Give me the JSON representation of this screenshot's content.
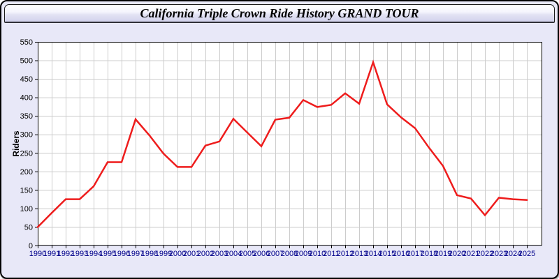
{
  "page": {
    "title": "California Triple Crown Ride History GRAND TOUR",
    "background_color": "#e8e8f8"
  },
  "chart_data": {
    "type": "line",
    "title": "California Triple Crown Ride History GRAND TOUR",
    "xlabel": "",
    "ylabel": "Riders",
    "x": [
      1990,
      1991,
      1992,
      1993,
      1994,
      1995,
      1996,
      1997,
      1998,
      1999,
      2000,
      2001,
      2002,
      2003,
      2004,
      2005,
      2006,
      2007,
      2008,
      2009,
      2010,
      2011,
      2012,
      2013,
      2014,
      2015,
      2016,
      2017,
      2018,
      2019,
      2020,
      2021,
      2022,
      2023,
      2024,
      2025
    ],
    "series": [
      {
        "name": "Riders",
        "color": "#ee1c1c",
        "values": [
          50,
          88,
          125,
          125,
          160,
          225,
          225,
          341,
          297,
          248,
          212,
          212,
          270,
          281,
          342,
          305,
          268,
          340,
          345,
          393,
          374,
          380,
          411,
          383,
          495,
          381,
          346,
          317,
          264,
          215,
          136,
          127,
          82,
          129,
          125,
          123
        ]
      }
    ],
    "ylim": [
      0,
      550
    ],
    "yticks": [
      0,
      50,
      100,
      150,
      200,
      250,
      300,
      350,
      400,
      450,
      500,
      550
    ],
    "grid": true,
    "legend_position": "none",
    "plot_background": "#ffffff",
    "grid_color": "#cccccc",
    "axis_color": "#000000",
    "x_tick_label_color": "#00008b",
    "y_tick_label_color": "#000000"
  }
}
